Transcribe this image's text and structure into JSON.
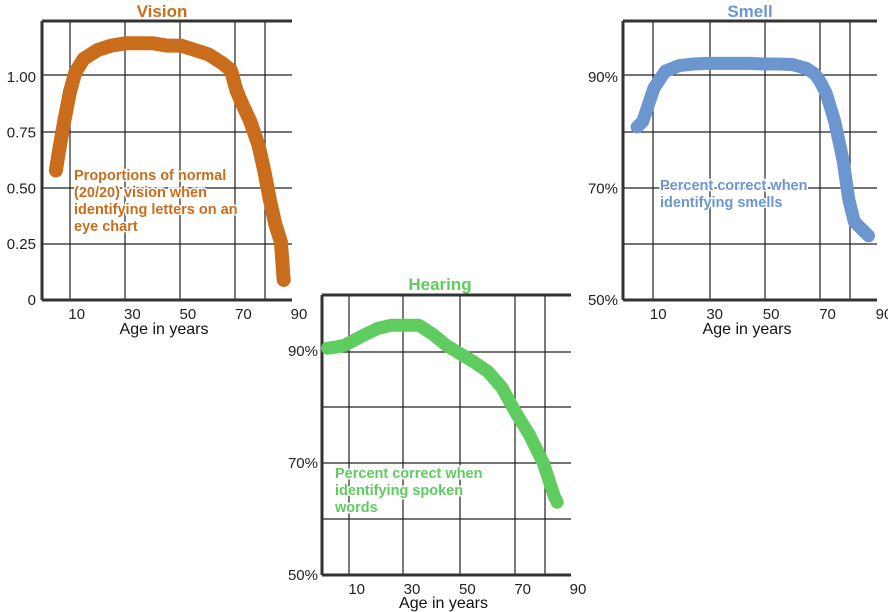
{
  "chart_data": [
    {
      "type": "line",
      "title": "Vision",
      "color": "#c96d1c",
      "annotation": [
        "Proportions of normal",
        "(20/20) vision when",
        "identifying letters on an",
        "eye chart"
      ],
      "xlabel": "Age in years",
      "ylabel": "",
      "xlim": [
        0,
        90
      ],
      "ylim": [
        0,
        1.25
      ],
      "x_ticks": [
        10,
        30,
        50,
        70,
        90
      ],
      "y_ticks": [
        {
          "value": 0,
          "label": "0"
        },
        {
          "value": 0.25,
          "label": "0.25"
        },
        {
          "value": 0.5,
          "label": "0.50"
        },
        {
          "value": 0.75,
          "label": "0.75"
        },
        {
          "value": 1.0,
          "label": "1.00"
        }
      ],
      "series": [
        {
          "x": [
            5,
            6,
            8,
            10,
            12,
            15,
            20,
            25,
            30,
            35,
            40,
            45,
            50,
            55,
            60,
            65,
            68,
            70,
            72,
            75,
            78,
            80,
            82,
            84,
            86,
            87
          ],
          "y": [
            0.58,
            0.66,
            0.8,
            0.93,
            1.02,
            1.08,
            1.12,
            1.14,
            1.15,
            1.15,
            1.15,
            1.14,
            1.14,
            1.12,
            1.1,
            1.06,
            1.03,
            0.94,
            0.88,
            0.8,
            0.69,
            0.58,
            0.45,
            0.34,
            0.26,
            0.09
          ]
        }
      ]
    },
    {
      "type": "line",
      "title": "Hearing",
      "color": "#5fcc5f",
      "annotation": [
        "Percent correct when",
        "identifying spoken",
        "words"
      ],
      "xlabel": "Age in years",
      "ylabel": "",
      "xlim": [
        0,
        90
      ],
      "ylim": [
        50,
        100
      ],
      "x_ticks": [
        10,
        30,
        50,
        70,
        90
      ],
      "y_ticks": [
        {
          "value": 50,
          "label": "50%"
        },
        {
          "value": 70,
          "label": "70%"
        },
        {
          "value": 90,
          "label": "90%"
        }
      ],
      "series": [
        {
          "x": [
            2,
            5,
            8,
            10,
            15,
            20,
            25,
            30,
            35,
            40,
            45,
            50,
            55,
            60,
            65,
            70,
            75,
            80,
            82,
            84,
            85
          ],
          "y": [
            90.5,
            90.7,
            91,
            91.5,
            92.8,
            94,
            94.6,
            94.6,
            94.6,
            93,
            91,
            89.5,
            88,
            86.3,
            83.5,
            79,
            75,
            70,
            67,
            64,
            63
          ]
        }
      ]
    },
    {
      "type": "line",
      "title": "Smell",
      "color": "#6b96cf",
      "annotation": [
        "Percent correct when",
        "identifying smells"
      ],
      "xlabel": "Age in years",
      "ylabel": "",
      "xlim": [
        0,
        90
      ],
      "ylim": [
        50,
        100
      ],
      "x_ticks": [
        10,
        30,
        50,
        70,
        90
      ],
      "y_ticks": [
        {
          "value": 50,
          "label": "50%"
        },
        {
          "value": 70,
          "label": "70%"
        },
        {
          "value": 90,
          "label": "90%"
        }
      ],
      "series": [
        {
          "x": [
            5,
            7,
            9,
            11,
            15,
            20,
            25,
            30,
            35,
            40,
            45,
            50,
            55,
            60,
            65,
            68,
            70,
            72,
            75,
            78,
            80,
            82,
            85,
            87
          ],
          "y": [
            81,
            82,
            85,
            88,
            91,
            92,
            92.3,
            92.4,
            92.4,
            92.4,
            92.4,
            92.3,
            92.3,
            92.2,
            91.5,
            90.5,
            89,
            87,
            82,
            75,
            68,
            64,
            62.5,
            61.5
          ]
        }
      ]
    }
  ]
}
